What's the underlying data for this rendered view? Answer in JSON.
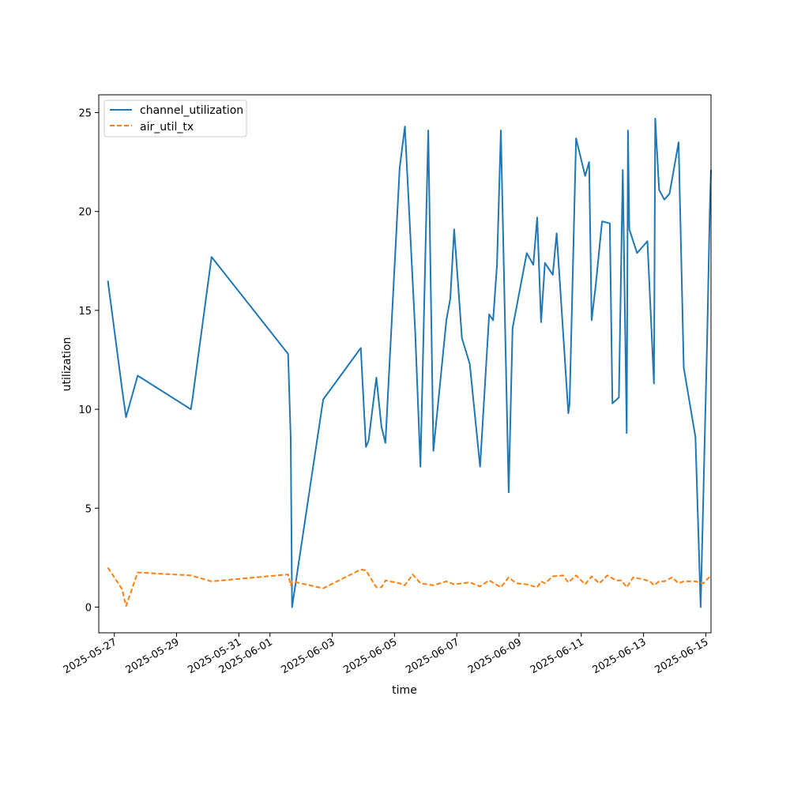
{
  "chart_data": {
    "type": "line",
    "title": "",
    "xlabel": "time",
    "ylabel": "utilization",
    "xlim": [
      "2025-05-26T12:00",
      "2025-06-15T04:00"
    ],
    "ylim": [
      -1.3,
      25.9
    ],
    "yticks": [
      0,
      5,
      10,
      15,
      20,
      25
    ],
    "xticks": [
      "2025-05-27",
      "2025-05-29",
      "2025-05-31",
      "2025-06-01",
      "2025-06-03",
      "2025-06-05",
      "2025-06-07",
      "2025-06-09",
      "2025-06-11",
      "2025-06-13",
      "2025-06-15"
    ],
    "grid": false,
    "legend": "top-left",
    "colors": {
      "channel_utilization": "#1f77b4",
      "air_util_tx": "#ff7f0e"
    },
    "series": [
      {
        "name": "channel_utilization",
        "style": "solid",
        "x": [
          "2025-05-26T19:00",
          "2025-05-27T06:00",
          "2025-05-27T09:00",
          "2025-05-27T18:00",
          "2025-05-29T11:00",
          "2025-05-29T12:00",
          "2025-05-30T03:00",
          "2025-06-01T14:00",
          "2025-06-01T16:00",
          "2025-06-01T17:00",
          "2025-06-02T17:00",
          "2025-06-03T22:00",
          "2025-06-04T02:00",
          "2025-06-04T04:00",
          "2025-06-04T10:00",
          "2025-06-04T14:00",
          "2025-06-04T17:00",
          "2025-06-05T04:00",
          "2025-06-05T08:00",
          "2025-06-05T16:00",
          "2025-06-05T20:00",
          "2025-06-06T02:00",
          "2025-06-06T06:00",
          "2025-06-06T16:00",
          "2025-06-06T19:00",
          "2025-06-06T22:00",
          "2025-06-07T04:00",
          "2025-06-07T10:00",
          "2025-06-07T18:00",
          "2025-06-08T01:00",
          "2025-06-08T04:00",
          "2025-06-08T07:00",
          "2025-06-08T10:00",
          "2025-06-08T16:00",
          "2025-06-08T19:00",
          "2025-06-09T06:00",
          "2025-06-09T11:00",
          "2025-06-09T14:00",
          "2025-06-09T17:00",
          "2025-06-09T20:00",
          "2025-06-10T02:00",
          "2025-06-10T05:00",
          "2025-06-10T10:00",
          "2025-06-10T14:00",
          "2025-06-10T15:00",
          "2025-06-10T20:00",
          "2025-06-11T03:00",
          "2025-06-11T06:00",
          "2025-06-11T08:00",
          "2025-06-11T11:00",
          "2025-06-11T16:00",
          "2025-06-11T22:00",
          "2025-06-12T00:00",
          "2025-06-12T05:00",
          "2025-06-12T08:00",
          "2025-06-12T11:00",
          "2025-06-12T12:00",
          "2025-06-12T13:00",
          "2025-06-12T19:00",
          "2025-06-13T03:00",
          "2025-06-13T08:00",
          "2025-06-13T09:00",
          "2025-06-13T12:00",
          "2025-06-13T16:00",
          "2025-06-13T20:00",
          "2025-06-14T03:00",
          "2025-06-14T07:00",
          "2025-06-14T16:00",
          "2025-06-14T20:00",
          "2025-06-15T01:00",
          "2025-06-15T03:00",
          "2025-06-15T04:00"
        ],
        "values": [
          16.5,
          11.0,
          9.6,
          11.7,
          10.0,
          10.4,
          17.7,
          12.8,
          8.5,
          0.0,
          10.5,
          13.1,
          8.1,
          8.4,
          11.6,
          9.1,
          8.3,
          22.2,
          24.3,
          13.9,
          7.1,
          24.1,
          7.9,
          14.5,
          15.6,
          19.1,
          13.6,
          12.3,
          7.1,
          14.8,
          14.5,
          17.3,
          24.1,
          5.8,
          14.1,
          17.9,
          17.3,
          19.7,
          14.4,
          17.4,
          16.8,
          18.9,
          13.9,
          9.8,
          10.3,
          23.7,
          21.8,
          22.5,
          14.5,
          16.2,
          19.5,
          19.4,
          10.3,
          10.6,
          22.1,
          8.8,
          24.1,
          19.1,
          17.9,
          18.5,
          11.3,
          24.7,
          21.1,
          20.6,
          20.9,
          23.5,
          12.1,
          8.6,
          0.0,
          13.5,
          20.0,
          22.1
        ]
      },
      {
        "name": "air_util_tx",
        "style": "dashed",
        "x": [
          "2025-05-26T19:00",
          "2025-05-27T06:00",
          "2025-05-27T09:00",
          "2025-05-27T18:00",
          "2025-05-29T11:00",
          "2025-05-30T03:00",
          "2025-06-01T14:00",
          "2025-06-01T16:00",
          "2025-06-01T17:00",
          "2025-06-02T17:00",
          "2025-06-03T22:00",
          "2025-06-04T02:00",
          "2025-06-04T10:00",
          "2025-06-04T14:00",
          "2025-06-04T17:00",
          "2025-06-05T04:00",
          "2025-06-05T08:00",
          "2025-06-05T14:00",
          "2025-06-05T20:00",
          "2025-06-06T06:00",
          "2025-06-06T16:00",
          "2025-06-06T22:00",
          "2025-06-07T04:00",
          "2025-06-07T10:00",
          "2025-06-07T18:00",
          "2025-06-08T01:00",
          "2025-06-08T10:00",
          "2025-06-08T16:00",
          "2025-06-08T22:00",
          "2025-06-09T06:00",
          "2025-06-09T14:00",
          "2025-06-09T17:00",
          "2025-06-09T20:00",
          "2025-06-10T02:00",
          "2025-06-10T10:00",
          "2025-06-10T14:00",
          "2025-06-10T20:00",
          "2025-06-11T03:00",
          "2025-06-11T08:00",
          "2025-06-11T14:00",
          "2025-06-11T20:00",
          "2025-06-12T03:00",
          "2025-06-12T07:00",
          "2025-06-12T11:00",
          "2025-06-12T16:00",
          "2025-06-13T00:00",
          "2025-06-13T05:00",
          "2025-06-13T08:00",
          "2025-06-13T12:00",
          "2025-06-13T16:00",
          "2025-06-13T22:00",
          "2025-06-14T03:00",
          "2025-06-14T07:00",
          "2025-06-14T16:00",
          "2025-06-14T22:00",
          "2025-06-15T04:00"
        ],
        "values": [
          2.0,
          0.9,
          0.05,
          1.75,
          1.6,
          1.3,
          1.65,
          1.1,
          1.3,
          0.95,
          1.9,
          1.85,
          1.0,
          1.0,
          1.35,
          1.2,
          1.1,
          1.65,
          1.2,
          1.1,
          1.3,
          1.15,
          1.2,
          1.25,
          1.05,
          1.35,
          1.0,
          1.5,
          1.2,
          1.15,
          1.0,
          1.3,
          1.2,
          1.55,
          1.6,
          1.25,
          1.6,
          1.15,
          1.55,
          1.2,
          1.6,
          1.35,
          1.35,
          1.0,
          1.5,
          1.4,
          1.3,
          1.1,
          1.3,
          1.3,
          1.5,
          1.2,
          1.3,
          1.3,
          1.2,
          1.6
        ]
      }
    ]
  }
}
